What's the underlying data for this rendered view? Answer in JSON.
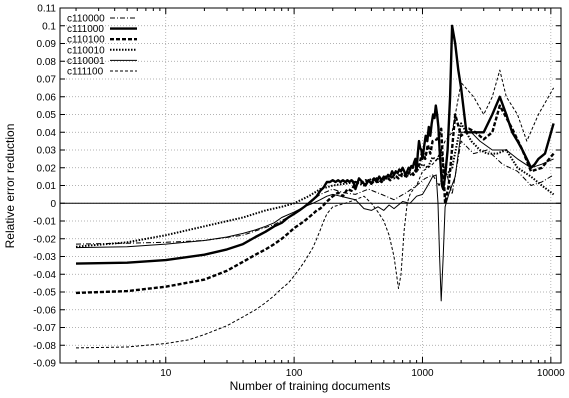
{
  "chart_data": {
    "type": "line",
    "title": "",
    "xlabel": "Number of training documents",
    "ylabel": "Relative error reduction",
    "xscale": "log",
    "xlim": [
      1.5,
      12000
    ],
    "ylim": [
      -0.09,
      0.11
    ],
    "xticks": [
      10,
      100,
      1000,
      10000
    ],
    "xtick_labels": [
      "10",
      "100",
      "1000",
      "10000"
    ],
    "yticks": [
      -0.09,
      -0.08,
      -0.07,
      -0.06,
      -0.05,
      -0.04,
      -0.03,
      -0.02,
      -0.01,
      0,
      0.01,
      0.02,
      0.03,
      0.04,
      0.05,
      0.06,
      0.07,
      0.08,
      0.09,
      0.1,
      0.11
    ],
    "ytick_labels": [
      "-0.09",
      "-0.08",
      "-0.07",
      "-0.06",
      "-0.05",
      "-0.04",
      "-0.03",
      "-0.02",
      "-0.01",
      "0",
      "0.01",
      "0.02",
      "0.03",
      "0.04",
      "0.05",
      "0.06",
      "0.07",
      "0.08",
      "0.09",
      "0.1",
      "0.11"
    ],
    "grid": true,
    "zero_line": true,
    "legend_position": "top-left",
    "series": [
      {
        "name": "c110000",
        "style": "dash-dot",
        "width": 1,
        "x": [
          2,
          5,
          10,
          20,
          40,
          70,
          100,
          130,
          160,
          200,
          240,
          300,
          380,
          480,
          600,
          750,
          900,
          1050,
          1200,
          1350,
          1500,
          1700,
          2000,
          2500,
          3200,
          4200,
          5500,
          7000,
          8500,
          10500
        ],
        "y": [
          -0.023,
          -0.0225,
          -0.022,
          -0.021,
          -0.018,
          -0.012,
          -0.006,
          0.0,
          0.005,
          0.008,
          0.006,
          0.005,
          0.008,
          0.005,
          0.002,
          0.006,
          0.01,
          0.014,
          0.016,
          0.01,
          0.02,
          0.005,
          0.035,
          0.028,
          0.03,
          0.022,
          0.018,
          0.01,
          0.012,
          0.016
        ]
      },
      {
        "name": "c111000",
        "style": "solid",
        "width": 2.4,
        "x": [
          2,
          5,
          10,
          20,
          30,
          40,
          50,
          60,
          70,
          80,
          90,
          100,
          110,
          120,
          130,
          140,
          150,
          160,
          170,
          180,
          190,
          200,
          210,
          220,
          230,
          240,
          250,
          260,
          270,
          280,
          290,
          300,
          320,
          340,
          360,
          380,
          400,
          420,
          440,
          460,
          480,
          500,
          520,
          540,
          560,
          580,
          600,
          620,
          640,
          660,
          680,
          700,
          720,
          740,
          760,
          780,
          800,
          820,
          840,
          860,
          880,
          900,
          920,
          940,
          960,
          980,
          1000,
          1030,
          1060,
          1090,
          1120,
          1150,
          1180,
          1210,
          1240,
          1270,
          1300,
          1330,
          1360,
          1390,
          1420,
          1450,
          1500,
          1570,
          1640,
          1700,
          1800,
          1900,
          2000,
          2200,
          2500,
          2800,
          3000,
          3500,
          4000,
          4500,
          5000,
          5500,
          6000,
          6500,
          7000,
          7500,
          8000,
          9000,
          10500
        ],
        "y": [
          -0.034,
          -0.0335,
          -0.032,
          -0.029,
          -0.026,
          -0.023,
          -0.019,
          -0.016,
          -0.013,
          -0.011,
          -0.008,
          -0.006,
          -0.004,
          -0.002,
          0.0,
          0.002,
          0.004,
          0.007,
          0.009,
          0.012,
          0.012,
          0.013,
          0.012,
          0.013,
          0.012,
          0.013,
          0.012,
          0.013,
          0.012,
          0.013,
          0.012,
          0.008,
          0.014,
          0.012,
          0.01,
          0.013,
          0.011,
          0.014,
          0.012,
          0.015,
          0.013,
          0.015,
          0.014,
          0.016,
          0.015,
          0.018,
          0.016,
          0.018,
          0.017,
          0.019,
          0.018,
          0.02,
          0.018,
          0.016,
          0.018,
          0.02,
          0.019,
          0.021,
          0.02,
          0.023,
          0.025,
          0.018,
          0.028,
          0.035,
          0.031,
          0.03,
          0.025,
          0.032,
          0.038,
          0.035,
          0.043,
          0.038,
          0.045,
          0.05,
          0.048,
          0.055,
          0.05,
          0.043,
          0.03,
          0.02,
          0.01,
          0.008,
          0.015,
          0.03,
          0.06,
          0.1,
          0.09,
          0.075,
          0.065,
          0.04,
          0.04,
          0.04,
          0.04,
          0.05,
          0.06,
          0.05,
          0.04,
          0.035,
          0.03,
          0.025,
          0.02,
          0.022,
          0.025,
          0.028,
          0.045
        ]
      },
      {
        "name": "c110100",
        "style": "dashed-heavy",
        "width": 2.4,
        "x": [
          2,
          5,
          10,
          20,
          30,
          40,
          50,
          60,
          70,
          80,
          90,
          100,
          110,
          120,
          130,
          140,
          150,
          160,
          170,
          180,
          190,
          200,
          220,
          240,
          260,
          280,
          300,
          330,
          360,
          400,
          440,
          480,
          520,
          560,
          600,
          650,
          700,
          750,
          800,
          850,
          900,
          950,
          1000,
          1050,
          1100,
          1150,
          1200,
          1300,
          1400,
          1500,
          1600,
          1800,
          2000,
          2300,
          2600,
          3000,
          3500,
          4000,
          5000,
          6000,
          7000,
          8500,
          10500
        ],
        "y": [
          -0.0505,
          -0.0495,
          -0.047,
          -0.043,
          -0.038,
          -0.033,
          -0.029,
          -0.026,
          -0.023,
          -0.02,
          -0.017,
          -0.014,
          -0.012,
          -0.01,
          -0.008,
          -0.006,
          -0.004,
          -0.003,
          -0.001,
          0.001,
          0.0025,
          0.004,
          0.006,
          0.004,
          0.008,
          0.007,
          0.012,
          0.011,
          0.013,
          0.011,
          0.014,
          0.012,
          0.015,
          0.013,
          0.016,
          0.014,
          0.017,
          0.015,
          0.018,
          0.016,
          0.02,
          0.022,
          0.03,
          0.025,
          0.033,
          0.028,
          0.035,
          0.036,
          0.042,
          0.0,
          0.01,
          0.05,
          0.038,
          0.042,
          0.04,
          0.036,
          0.04,
          0.055,
          0.042,
          0.03,
          0.018,
          0.02,
          0.028
        ]
      },
      {
        "name": "c110010",
        "style": "dotted",
        "width": 2,
        "x": [
          2,
          5,
          10,
          20,
          40,
          60,
          80,
          100,
          130,
          160,
          200,
          250,
          300,
          350,
          400,
          450,
          500,
          550,
          600,
          650,
          700,
          800,
          900,
          1000,
          1100,
          1200,
          1300,
          1400,
          1500,
          1700,
          2000,
          2400,
          2800,
          3200,
          3800,
          4500,
          5500,
          7000,
          8500,
          10500
        ],
        "y": [
          -0.0245,
          -0.022,
          -0.018,
          -0.013,
          -0.008,
          -0.004,
          -0.002,
          0.0,
          0.004,
          0.008,
          0.01,
          0.011,
          0.012,
          0.01,
          0.014,
          0.012,
          0.013,
          0.015,
          0.014,
          0.016,
          0.015,
          0.016,
          0.018,
          0.022,
          0.02,
          0.026,
          0.024,
          0.03,
          0.015,
          0.02,
          0.045,
          0.035,
          0.03,
          0.028,
          0.028,
          0.03,
          0.02,
          0.015,
          0.01,
          0.005
        ]
      },
      {
        "name": "c110001",
        "style": "solid-thin",
        "width": 1,
        "x": [
          2,
          5,
          10,
          20,
          30,
          40,
          50,
          60,
          70,
          80,
          100,
          120,
          140,
          160,
          180,
          200,
          230,
          260,
          300,
          350,
          400,
          450,
          500,
          550,
          600,
          700,
          800,
          900,
          1000,
          1100,
          1200,
          1280,
          1320,
          1360,
          1400,
          1450,
          1500,
          1600,
          1800,
          2000,
          2400,
          2800,
          3500,
          4500,
          5500,
          7000,
          8500,
          10500
        ],
        "y": [
          -0.025,
          -0.0245,
          -0.023,
          -0.021,
          -0.019,
          -0.017,
          -0.015,
          -0.013,
          -0.011,
          -0.008,
          -0.005,
          -0.002,
          0.0,
          0.002,
          0.004,
          0.005,
          0.004,
          0.003,
          0.002,
          -0.003,
          -0.004,
          -0.002,
          -0.004,
          -0.001,
          -0.003,
          0.001,
          0.0,
          0.004,
          0.005,
          0.01,
          0.015,
          0.016,
          0.0,
          -0.03,
          -0.055,
          -0.03,
          -0.002,
          0.005,
          0.015,
          0.04,
          0.04,
          0.035,
          0.03,
          0.03,
          0.025,
          0.02,
          0.022,
          0.025
        ]
      },
      {
        "name": "c111100",
        "style": "dashed-thin",
        "width": 1,
        "x": [
          2,
          5,
          10,
          15,
          20,
          30,
          40,
          50,
          60,
          70,
          80,
          90,
          100,
          110,
          120,
          130,
          140,
          150,
          160,
          170,
          180,
          200,
          250,
          300,
          350,
          400,
          450,
          500,
          550,
          600,
          650,
          680,
          720,
          760,
          800,
          850,
          900,
          1000,
          1100,
          1200,
          1300,
          1400,
          1500,
          1700,
          2000,
          2500,
          3000,
          3500,
          4000,
          4500,
          5500,
          6500,
          8000,
          10500
        ],
        "y": [
          -0.0815,
          -0.081,
          -0.079,
          -0.077,
          -0.074,
          -0.069,
          -0.064,
          -0.06,
          -0.056,
          -0.052,
          -0.048,
          -0.045,
          -0.041,
          -0.037,
          -0.033,
          -0.029,
          -0.025,
          -0.02,
          -0.015,
          -0.01,
          -0.006,
          -0.002,
          0.0,
          0.002,
          0.004,
          0.0,
          -0.005,
          -0.01,
          -0.018,
          -0.03,
          -0.048,
          -0.04,
          -0.015,
          0.0,
          0.005,
          0.008,
          0.01,
          0.018,
          0.02,
          0.022,
          0.025,
          0.03,
          0.035,
          0.04,
          0.068,
          0.06,
          0.05,
          0.06,
          0.075,
          0.06,
          0.05,
          0.035,
          0.05,
          0.065
        ]
      }
    ]
  }
}
